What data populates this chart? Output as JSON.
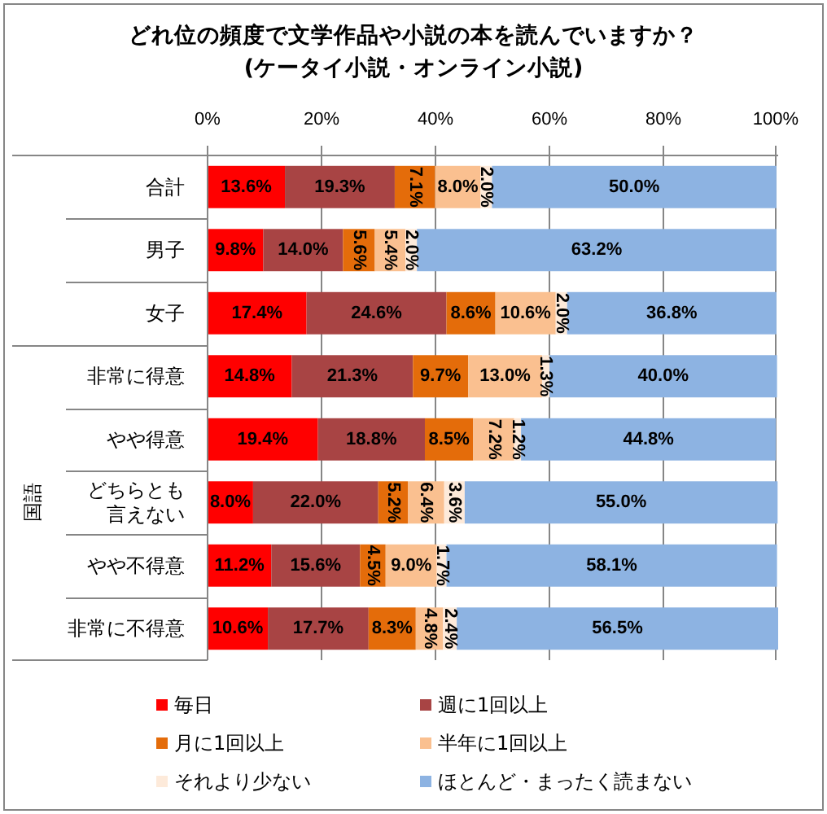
{
  "chart_data": {
    "type": "bar",
    "orientation": "horizontal",
    "stacked": true,
    "title": "どれ位の頻度で文学作品や小説の本を読んでいますか？",
    "subtitle": "(ケータイ小説・オンライン小説)",
    "categories": [
      "合計",
      "男子",
      "女子",
      "非常に得意",
      "やや得意",
      "どちらとも言えない",
      "やや不得意",
      "非常に不得意"
    ],
    "series": [
      {
        "name": "毎日",
        "color": "#ff0000",
        "values": [
          13.6,
          9.8,
          17.4,
          14.8,
          19.4,
          8.0,
          11.2,
          10.6
        ],
        "value_labels": [
          "13.6%",
          "9.8%",
          "17.4%",
          "14.8%",
          "19.4%",
          "8.0%",
          "11.2%",
          "10.6%"
        ]
      },
      {
        "name": "週に1回以上",
        "color": "#a84444",
        "values": [
          19.3,
          14.0,
          24.6,
          21.3,
          18.8,
          22.0,
          15.6,
          17.7
        ],
        "value_labels": [
          "19.3%",
          "14.0%",
          "24.6%",
          "21.3%",
          "18.8%",
          "22.0%",
          "15.6%",
          "17.7%"
        ]
      },
      {
        "name": "月に1回以上",
        "color": "#e46c0a",
        "values": [
          7.1,
          5.6,
          8.6,
          9.7,
          8.5,
          5.2,
          4.5,
          8.3
        ],
        "value_labels": [
          "7.1%",
          "5.6%",
          "8.6%",
          "9.7%",
          "8.5%",
          "5.2%",
          "4.5%",
          "8.3%"
        ]
      },
      {
        "name": "半年に1回以上",
        "color": "#fac090",
        "values": [
          8.0,
          5.4,
          10.6,
          13.0,
          7.2,
          6.4,
          9.0,
          4.8
        ],
        "value_labels": [
          "8.0%",
          "5.4%",
          "10.6%",
          "13.0%",
          "7.2%",
          "6.4%",
          "9.0%",
          "4.8%"
        ]
      },
      {
        "name": "それより少ない",
        "color": "#fdeada",
        "values": [
          2.0,
          2.0,
          2.0,
          1.3,
          1.2,
          3.6,
          1.7,
          2.4
        ],
        "value_labels": [
          "2.0%",
          "2.0%",
          "2.0%",
          "1.3%",
          "1.2%",
          "3.6%",
          "1.7%",
          "2.4%"
        ]
      },
      {
        "name": "ほとんど・まったく読まない",
        "color": "#8db3e2",
        "values": [
          50.0,
          63.2,
          36.8,
          40.0,
          44.8,
          55.0,
          58.1,
          56.5
        ],
        "value_labels": [
          "50.0%",
          "63.2%",
          "36.8%",
          "40.0%",
          "44.8%",
          "55.0%",
          "58.1%",
          "56.5%"
        ]
      }
    ],
    "xlim": [
      0,
      100.3
    ],
    "xticks": [
      {
        "value": 0,
        "label": "0%"
      },
      {
        "value": 20,
        "label": "20%"
      },
      {
        "value": 40,
        "label": "40%"
      },
      {
        "value": 60,
        "label": "60%"
      },
      {
        "value": 80,
        "label": "80%"
      },
      {
        "value": 100,
        "label": "100%"
      }
    ],
    "grid": "x",
    "legend": "bottom",
    "annotations": [
      "国語"
    ]
  }
}
